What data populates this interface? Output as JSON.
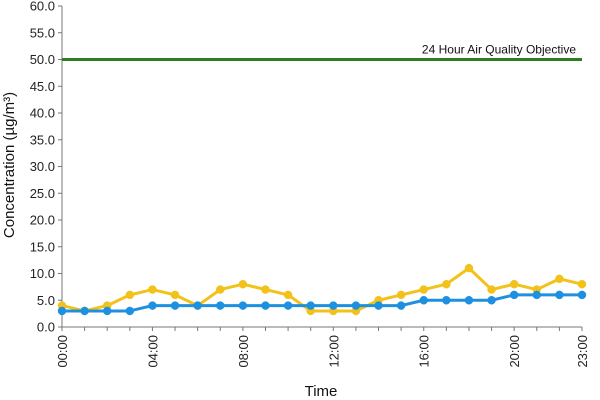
{
  "chart_data": {
    "type": "line",
    "title": "",
    "xlabel": "Time",
    "ylabel": "Concentration (µg/m³)",
    "ylim": [
      0,
      60
    ],
    "y_ticks": [
      "0.0",
      "5.0",
      "10.0",
      "15.0",
      "20.0",
      "25.0",
      "30.0",
      "35.0",
      "40.0",
      "45.0",
      "50.0",
      "55.0",
      "60.0"
    ],
    "x": [
      0,
      1,
      2,
      3,
      4,
      5,
      6,
      7,
      8,
      9,
      10,
      11,
      12,
      13,
      14,
      15,
      16,
      17,
      18,
      19,
      20,
      21,
      22,
      23
    ],
    "x_tick_labels": [
      {
        "x": 0,
        "label": "00:00"
      },
      {
        "x": 4,
        "label": "04:00"
      },
      {
        "x": 8,
        "label": "08:00"
      },
      {
        "x": 12,
        "label": "12:00"
      },
      {
        "x": 16,
        "label": "16:00"
      },
      {
        "x": 20,
        "label": "20:00"
      },
      {
        "x": 23,
        "label": "23:00"
      }
    ],
    "grid": false,
    "legend": "none",
    "series": [
      {
        "color": "#f2c21a",
        "values": [
          4,
          3,
          4,
          6,
          7,
          6,
          4,
          7,
          8,
          7,
          6,
          3,
          3,
          3,
          5,
          6,
          7,
          8,
          11,
          7,
          8,
          7,
          9,
          8
        ]
      },
      {
        "color": "#1e90e0",
        "values": [
          3,
          3,
          3,
          3,
          4,
          4,
          4,
          4,
          4,
          4,
          4,
          4,
          4,
          4,
          4,
          4,
          5,
          5,
          5,
          5,
          6,
          6,
          6,
          6
        ]
      }
    ],
    "reference_line": {
      "value": 50,
      "label": "24 Hour Air Quality Objective",
      "color": "#2e7d1f"
    }
  }
}
